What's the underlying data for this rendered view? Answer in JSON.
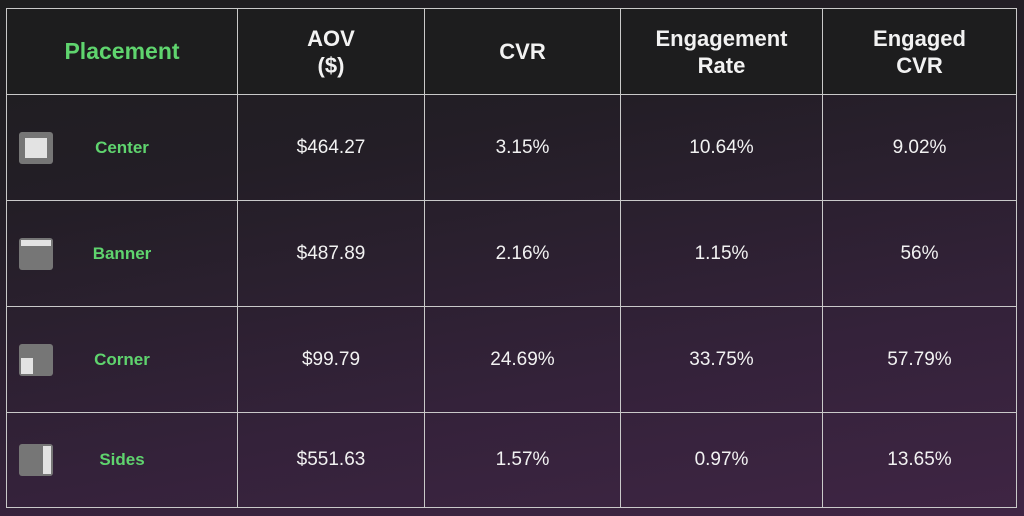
{
  "headers": {
    "placement": "Placement",
    "aov_line1": "AOV",
    "aov_line2": "($)",
    "cvr": "CVR",
    "er_line1": "Engagement",
    "er_line2": "Rate",
    "ecvr_line1": "Engaged",
    "ecvr_line2": "CVR"
  },
  "colors": {
    "accent": "#5fd46e"
  },
  "rows": [
    {
      "icon": "placement-center-icon",
      "placement": "Center",
      "aov": "$464.27",
      "cvr": "3.15%",
      "engagement_rate": "10.64%",
      "engaged_cvr": "9.02%"
    },
    {
      "icon": "placement-banner-icon",
      "placement": "Banner",
      "aov": "$487.89",
      "cvr": "2.16%",
      "engagement_rate": "1.15%",
      "engaged_cvr": "56%"
    },
    {
      "icon": "placement-corner-icon",
      "placement": "Corner",
      "aov": "$99.79",
      "cvr": "24.69%",
      "engagement_rate": "33.75%",
      "engaged_cvr": "57.79%"
    },
    {
      "icon": "placement-sides-icon",
      "placement": "Sides",
      "aov": "$551.63",
      "cvr": "1.57%",
      "engagement_rate": "0.97%",
      "engaged_cvr": "13.65%"
    }
  ]
}
